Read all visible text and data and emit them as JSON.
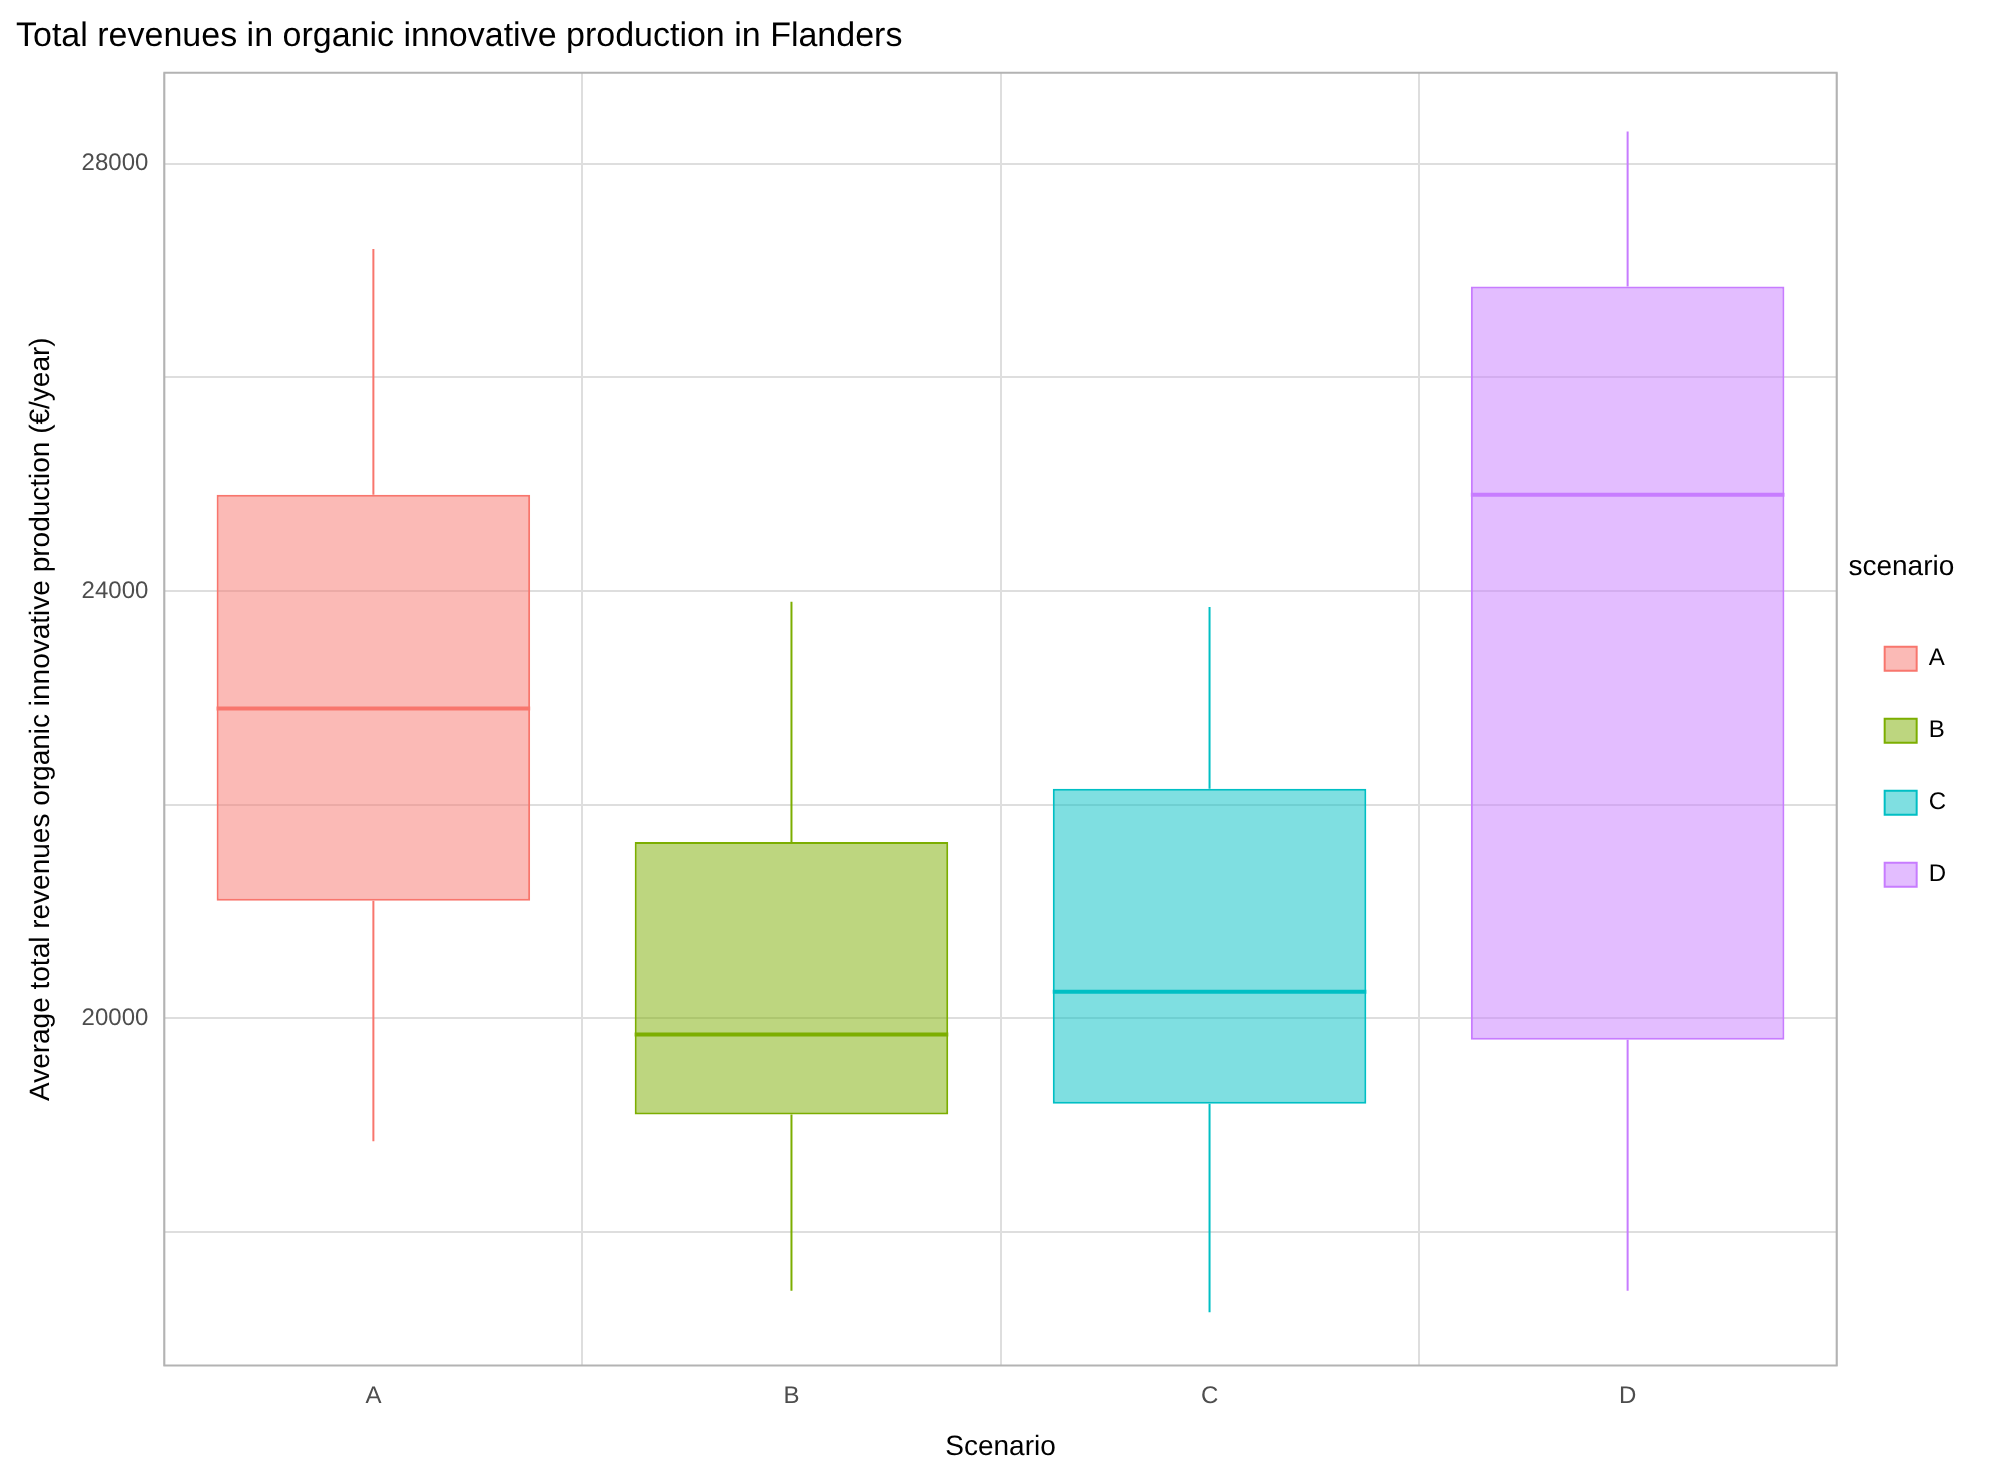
{
  "chart_data": {
    "type": "box",
    "title": "Total revenues in organic innovative production in Flanders",
    "xlabel": "Scenario",
    "ylabel": "Average total revenues organic innovative production (€/year)",
    "categories": [
      "A",
      "B",
      "C",
      "D"
    ],
    "series": [
      {
        "name": "A",
        "color": "#f8766d",
        "boxes": [
          {
            "low": 18850,
            "q1": 21100,
            "median": 22900,
            "q3": 24900,
            "high": 27200
          },
          null,
          null,
          null
        ]
      },
      {
        "name": "B",
        "color": "#7cae00",
        "boxes": [
          null,
          {
            "low": 17450,
            "q1": 19100,
            "median": 19850,
            "q3": 21650,
            "high": 23900
          },
          null,
          null
        ]
      },
      {
        "name": "C",
        "color": "#00bfc4",
        "boxes": [
          null,
          null,
          {
            "low": 17250,
            "q1": 19200,
            "median": 20250,
            "q3": 22150,
            "high": 23850
          },
          null
        ]
      },
      {
        "name": "D",
        "color": "#c77cff",
        "boxes": [
          null,
          null,
          null,
          {
            "low": 17450,
            "q1": 19800,
            "median": 24900,
            "q3": 26850,
            "high": 28300
          }
        ]
      }
    ],
    "ylim": [
      16750,
      28850
    ],
    "yticks": [
      {
        "value": 18000,
        "label": null
      },
      20000,
      {
        "value": 22000,
        "label": null
      },
      24000,
      {
        "value": 26000,
        "label": null
      },
      28000
    ],
    "grid": true,
    "legend": "right",
    "legend_title": "scenario"
  }
}
